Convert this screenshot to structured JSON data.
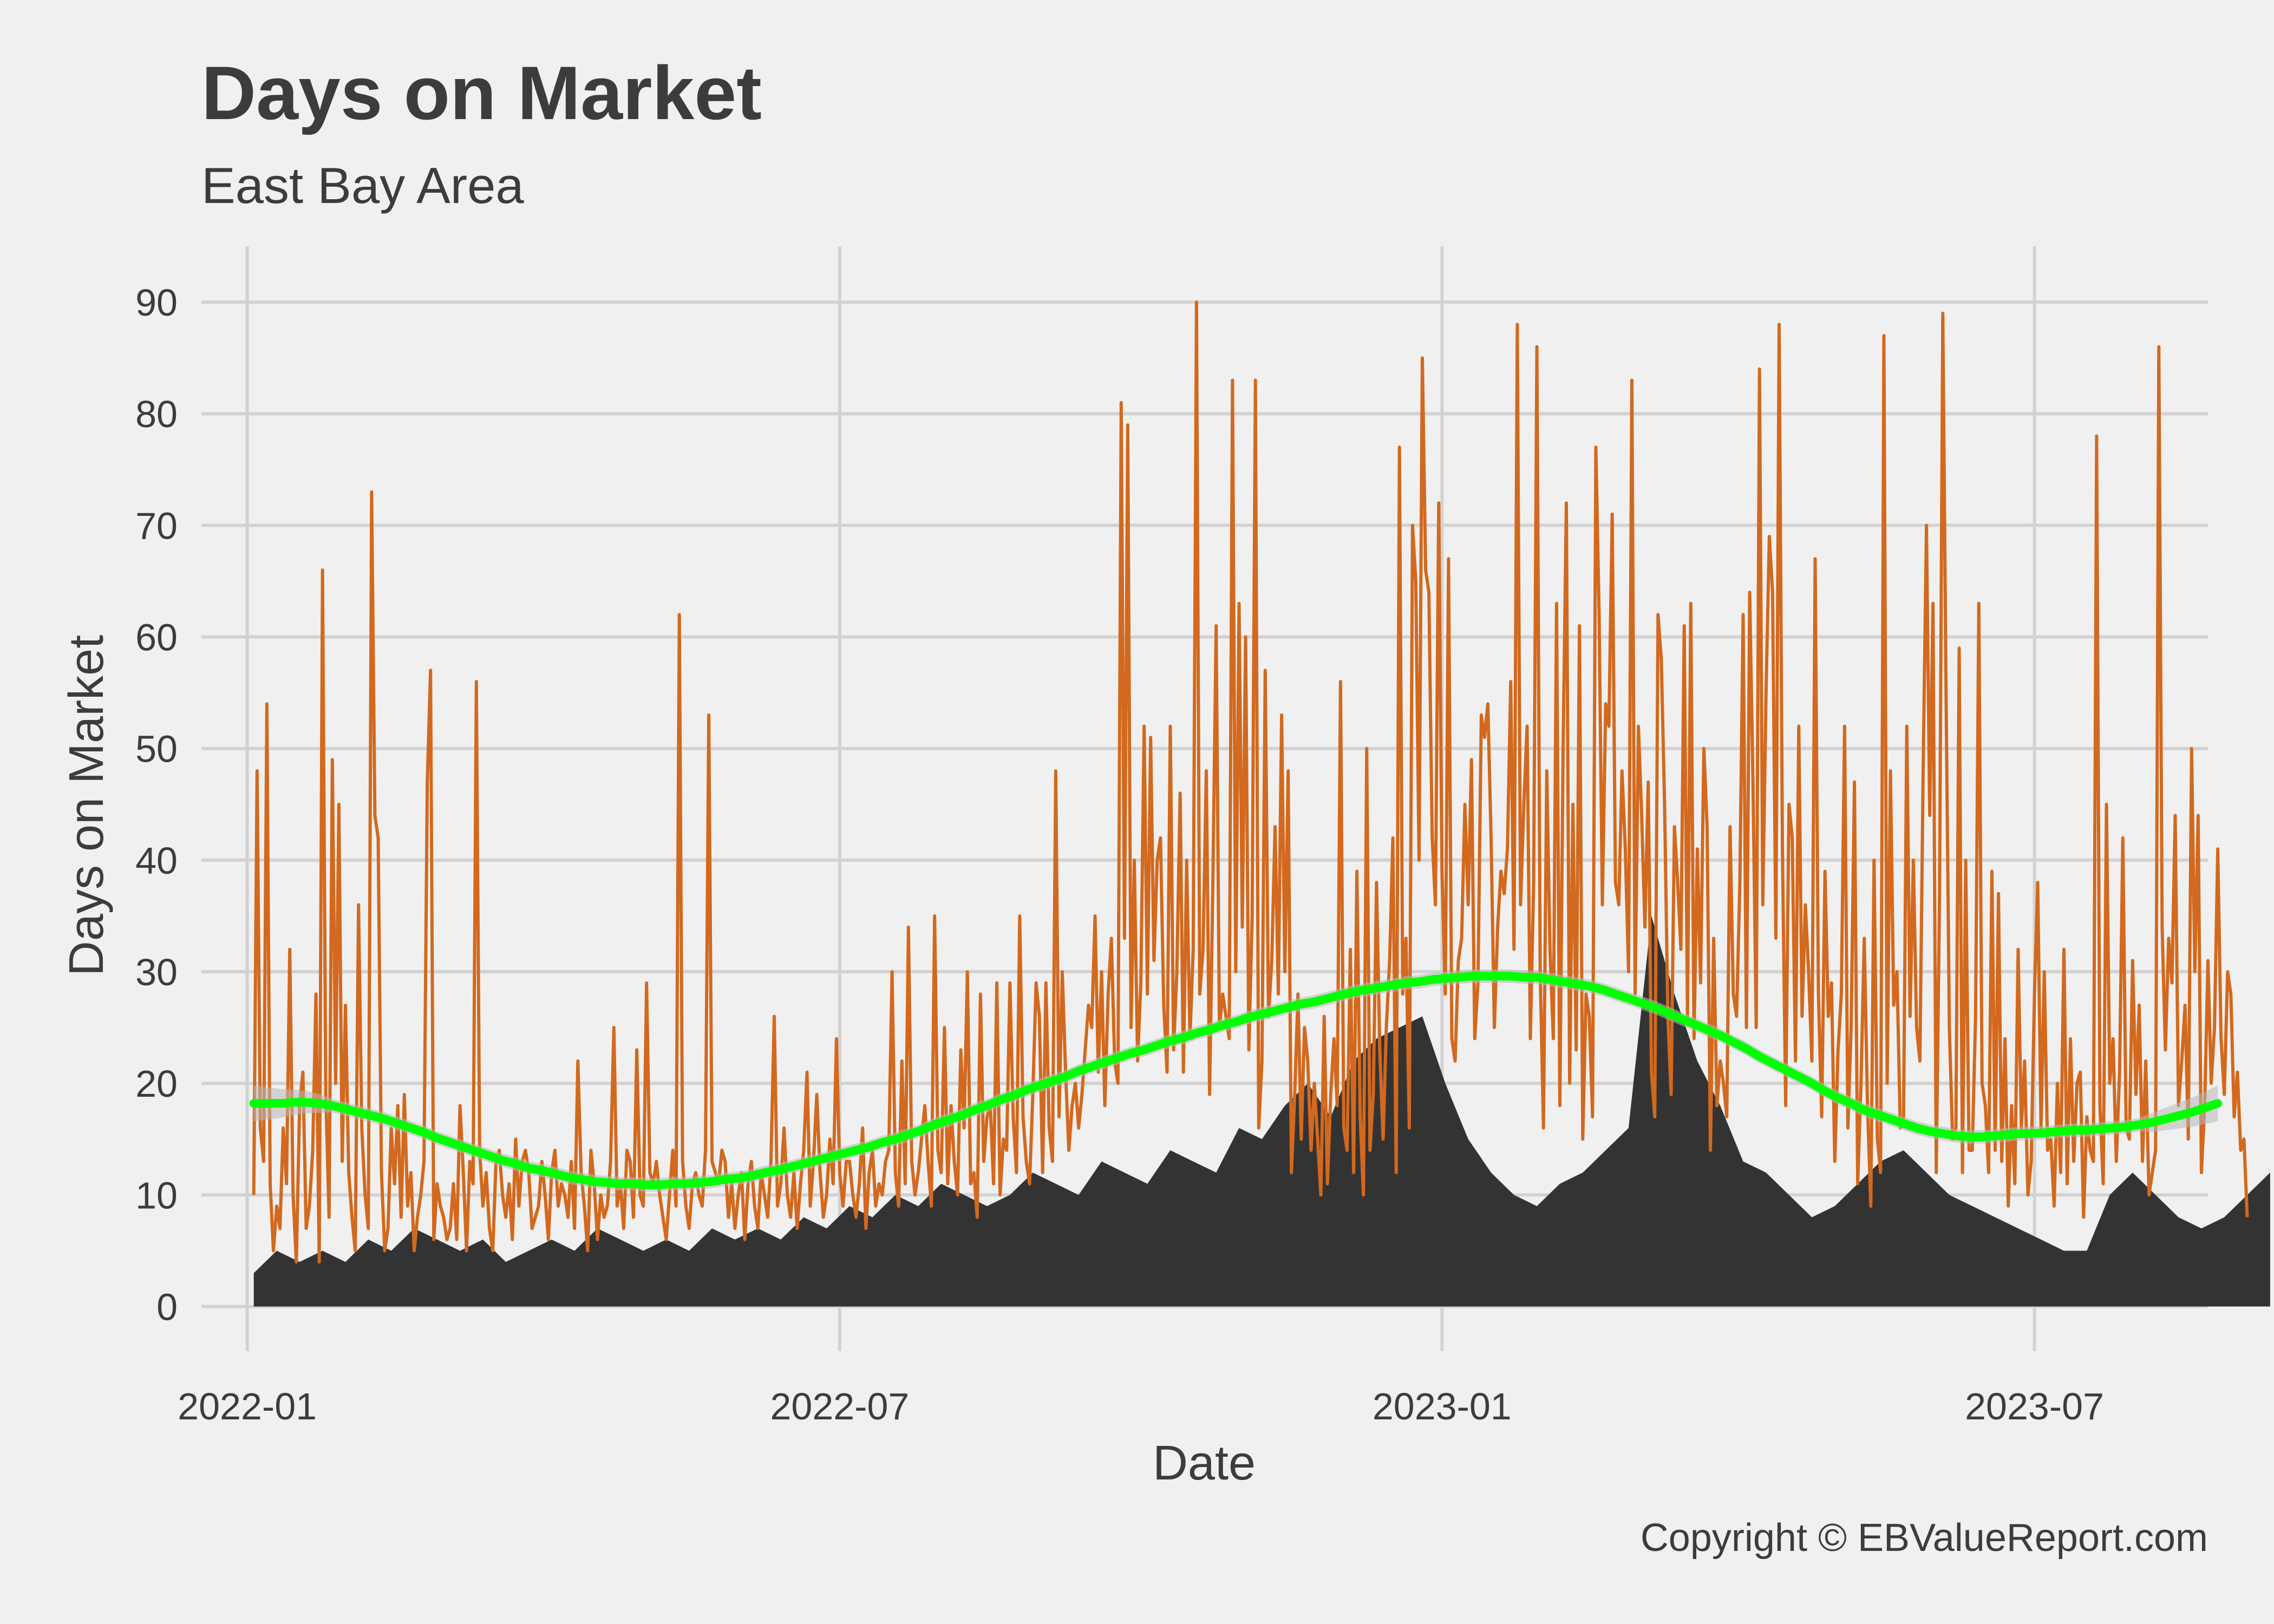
{
  "chart_data": {
    "type": "line",
    "title": "Days on Market",
    "subtitle": "East Bay Area",
    "xlabel": "Date",
    "ylabel": "Days on Market",
    "caption": "Copyright  © EBValueReport.com",
    "x_range": [
      "2021-12-18",
      "2023-08-23"
    ],
    "ylim": [
      -4,
      95
    ],
    "y_ticks": [
      0,
      10,
      20,
      30,
      40,
      50,
      60,
      70,
      80,
      90
    ],
    "x_ticks": [
      {
        "date": "2022-01-01",
        "label": "2022-01"
      },
      {
        "date": "2022-07-01",
        "label": "2022-07"
      },
      {
        "date": "2023-01-01",
        "label": "2023-01"
      },
      {
        "date": "2023-07-01",
        "label": "2023-07"
      }
    ],
    "grid": true,
    "colors": {
      "background": "#f0f0f0",
      "grid": "#d2d2d2",
      "median_fill": "#333333",
      "daily_line": "#d2691e",
      "trend": "#00ff00",
      "band": "#b8b8b8"
    },
    "series": [
      {
        "style": "line",
        "daily": true,
        "start": "2022-01-03",
        "values": [
          10,
          48,
          16,
          13,
          54,
          11,
          5,
          9,
          7,
          16,
          11,
          32,
          10,
          4,
          18,
          21,
          7,
          9,
          14,
          28,
          4,
          66,
          19,
          8,
          49,
          20,
          45,
          13,
          27,
          12,
          8,
          5,
          36,
          16,
          10,
          7,
          73,
          44,
          42,
          12,
          5,
          7,
          16,
          11,
          18,
          8,
          19,
          9,
          12,
          5,
          8,
          10,
          13,
          47,
          57,
          6,
          11,
          9,
          8,
          6,
          7,
          11,
          6,
          18,
          12,
          5,
          13,
          11,
          56,
          14,
          9,
          12,
          7,
          5,
          13,
          14,
          10,
          8,
          11,
          6,
          15,
          9,
          13,
          14,
          12,
          7,
          8,
          9,
          13,
          10,
          6,
          12,
          14,
          9,
          11,
          10,
          8,
          13,
          7,
          22,
          12,
          9,
          5,
          14,
          11,
          6,
          10,
          8,
          9,
          13,
          25,
          9,
          11,
          7,
          14,
          13,
          8,
          23,
          10,
          9,
          29,
          12,
          11,
          13,
          10,
          8,
          6,
          10,
          14,
          9,
          62,
          13,
          9,
          7,
          11,
          12,
          10,
          9,
          14,
          53,
          13,
          12,
          11,
          14,
          13,
          8,
          11,
          7,
          10,
          12,
          6,
          11,
          13,
          9,
          7,
          12,
          10,
          8,
          13,
          26,
          9,
          11,
          16,
          10,
          8,
          12,
          7,
          11,
          14,
          21,
          9,
          13,
          19,
          12,
          8,
          10,
          15,
          11,
          24,
          12,
          9,
          13,
          13,
          10,
          8,
          11,
          16,
          7,
          12,
          14,
          9,
          11,
          10,
          13,
          14,
          30,
          12,
          9,
          22,
          11,
          34,
          13,
          10,
          12,
          15,
          18,
          13,
          9,
          35,
          14,
          12,
          25,
          11,
          18,
          13,
          10,
          23,
          16,
          30,
          11,
          12,
          8,
          28,
          13,
          17,
          18,
          11,
          29,
          10,
          15,
          14,
          29,
          17,
          12,
          35,
          17,
          13,
          11,
          19,
          29,
          26,
          12,
          29,
          16,
          13,
          48,
          17,
          30,
          21,
          14,
          18,
          20,
          16,
          19,
          23,
          27,
          25,
          35,
          21,
          30,
          18,
          28,
          33,
          22,
          20,
          81,
          33,
          79,
          25,
          40,
          22,
          29,
          52,
          28,
          51,
          31,
          40,
          42,
          27,
          21,
          52,
          23,
          30,
          46,
          21,
          40,
          24,
          32,
          90,
          28,
          32,
          48,
          19,
          38,
          61,
          25,
          28,
          26,
          24,
          83,
          30,
          63,
          34,
          60,
          23,
          35,
          83,
          16,
          22,
          57,
          26,
          31,
          43,
          28,
          53,
          30,
          48,
          12,
          19,
          28,
          15,
          25,
          22,
          14,
          20,
          15,
          10,
          26,
          11,
          19,
          24,
          18,
          56,
          16,
          14,
          32,
          12,
          39,
          17,
          10,
          50,
          14,
          19,
          38,
          23,
          15,
          25,
          31,
          42,
          12,
          77,
          28,
          33,
          16,
          70,
          65,
          40,
          85,
          66,
          64,
          42,
          36,
          72,
          39,
          28,
          67,
          24,
          22,
          31,
          33,
          45,
          36,
          49,
          24,
          29,
          53,
          51,
          54,
          42,
          25,
          34,
          39,
          37,
          41,
          56,
          32,
          88,
          36,
          45,
          52,
          24,
          38,
          86,
          30,
          16,
          48,
          32,
          24,
          63,
          18,
          50,
          72,
          20,
          45,
          23,
          61,
          15,
          28,
          26,
          17,
          77,
          62,
          36,
          54,
          52,
          71,
          38,
          36,
          48,
          41,
          30,
          83,
          28,
          52,
          44,
          34,
          47,
          21,
          17,
          62,
          58,
          45,
          26,
          19,
          43,
          38,
          32,
          61,
          26,
          63,
          24,
          41,
          29,
          50,
          43,
          14,
          33,
          18,
          22,
          20,
          17,
          43,
          28,
          26,
          38,
          62,
          25,
          64,
          47,
          25,
          84,
          36,
          55,
          69,
          64,
          33,
          88,
          41,
          18,
          45,
          42,
          22,
          52,
          26,
          36,
          30,
          22,
          67,
          28,
          17,
          39,
          26,
          29,
          13,
          23,
          28,
          52,
          16,
          25,
          47,
          11,
          20,
          33,
          18,
          9,
          40,
          15,
          12,
          87,
          20,
          48,
          27,
          30,
          16,
          17,
          52,
          26,
          40,
          25,
          22,
          48,
          70,
          44,
          63,
          12,
          37,
          89,
          55,
          25,
          15,
          16,
          59,
          12,
          40,
          14,
          14,
          26,
          63,
          20,
          18,
          12,
          39,
          14,
          37,
          13,
          24,
          9,
          18,
          11,
          32,
          16,
          22,
          10,
          13,
          28,
          38,
          16,
          30,
          14,
          15,
          9,
          20,
          12,
          32,
          11,
          24,
          13,
          20,
          21,
          8,
          17,
          14,
          13,
          78,
          18,
          11,
          45,
          20,
          24,
          13,
          21,
          42,
          16,
          15,
          31,
          19,
          27,
          13,
          22,
          10,
          12,
          14,
          86,
          34,
          23,
          33,
          29,
          44,
          18,
          22,
          27,
          15,
          50,
          30,
          44,
          12,
          18,
          31,
          20,
          25,
          41,
          24,
          19,
          30,
          28,
          17,
          21,
          14,
          15,
          8
        ]
      },
      {
        "style": "area",
        "weekly": true,
        "start": "2022-01-03",
        "values": [
          3,
          5,
          4,
          5,
          4,
          6,
          5,
          7,
          6,
          5,
          6,
          4,
          5,
          6,
          5,
          7,
          6,
          5,
          6,
          5,
          7,
          6,
          7,
          6,
          8,
          7,
          9,
          8,
          10,
          9,
          11,
          10,
          9,
          10,
          12,
          11,
          10,
          13,
          12,
          11,
          14,
          13,
          12,
          16,
          15,
          18,
          20,
          17,
          22,
          24,
          25,
          26,
          20,
          15,
          12,
          10,
          9,
          11,
          12,
          14,
          16,
          35,
          28,
          22,
          18,
          13,
          12,
          10,
          8,
          9,
          11,
          13,
          14,
          12,
          10,
          9,
          8,
          7,
          6,
          5,
          5,
          10,
          12,
          10,
          8,
          7,
          8,
          10,
          12
        ]
      },
      {
        "style": "trend",
        "start": "2022-01-03",
        "values": [
          18.2,
          18.2,
          18.2,
          18.3,
          18.3,
          18.2,
          18.0,
          17.7,
          17.4,
          17.1,
          16.8,
          16.4,
          16.0,
          15.6,
          15.1,
          14.7,
          14.3,
          13.9,
          13.5,
          13.1,
          12.8,
          12.4,
          12.2,
          11.9,
          11.6,
          11.4,
          11.2,
          11.1,
          11.0,
          11.0,
          10.9,
          10.9,
          11.0,
          11.0,
          11.1,
          11.2,
          11.4,
          11.5,
          11.7,
          12.0,
          12.2,
          12.5,
          12.8,
          13.1,
          13.4,
          13.7,
          14.0,
          14.3,
          14.7,
          15.0,
          15.4,
          15.8,
          16.3,
          16.7,
          17.1,
          17.6,
          18.0,
          18.5,
          18.9,
          19.4,
          19.8,
          20.2,
          20.6,
          21.1,
          21.5,
          21.9,
          22.3,
          22.7,
          23.0,
          23.4,
          23.8,
          24.1,
          24.5,
          24.8,
          25.2,
          25.5,
          25.9,
          26.2,
          26.5,
          26.8,
          27.1,
          27.3,
          27.6,
          27.9,
          28.2,
          28.4,
          28.6,
          28.8,
          29.0,
          29.1,
          29.3,
          29.4,
          29.5,
          29.6,
          29.6,
          29.6,
          29.6,
          29.5,
          29.5,
          29.3,
          29.1,
          28.9,
          28.7,
          28.4,
          28.0,
          27.6,
          27.2,
          26.8,
          26.3,
          25.8,
          25.3,
          24.8,
          24.3,
          23.7,
          23.1,
          22.4,
          21.8,
          21.2,
          20.6,
          20.0,
          19.3,
          18.7,
          18.2,
          17.6,
          17.2,
          16.8,
          16.4,
          16.0,
          15.7,
          15.5,
          15.3,
          15.2,
          15.2,
          15.3,
          15.4,
          15.5,
          15.5,
          15.6,
          15.7,
          15.8,
          15.8,
          15.9,
          16.0,
          16.1,
          16.3,
          16.5,
          16.8,
          17.1,
          17.4,
          17.8,
          18.2
        ]
      }
    ]
  }
}
